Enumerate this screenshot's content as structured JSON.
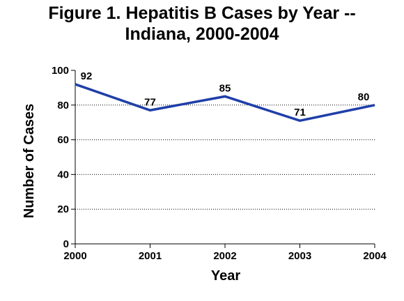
{
  "chart_data": {
    "type": "line",
    "title_lines": [
      "Figure 1. Hepatitis B Cases by Year --",
      "Indiana, 2000-2004"
    ],
    "xlabel": "Year",
    "ylabel": "Number of Cases",
    "x": [
      "2000",
      "2001",
      "2002",
      "2003",
      "2004"
    ],
    "series": [
      {
        "values": [
          92,
          77,
          85,
          71,
          80
        ],
        "color": "#1f3fa8"
      }
    ],
    "data_labels": [
      "92",
      "77",
      "85",
      "71",
      "80"
    ],
    "ylim": [
      0,
      100
    ],
    "yticks": [
      "0",
      "20",
      "40",
      "60",
      "80",
      "100"
    ],
    "grid": "horizontal dotted",
    "legend": "none"
  }
}
